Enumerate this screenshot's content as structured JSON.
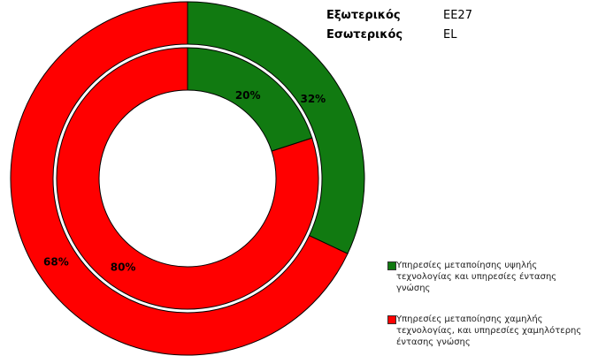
{
  "header": {
    "external_label": "Εξωτερικός",
    "external_value": "EE27",
    "internal_label": "Εσωτερικός",
    "internal_value": "EL"
  },
  "chart_data": {
    "type": "pie",
    "subtype": "nested-donut",
    "start": "top",
    "direction": "clockwise",
    "categories": [
      "Υπηρεσίες μεταποίησης υψηλής τεχνολογίας και υπηρεσίες έντασης γνώσης",
      "Υπηρεσίες μεταποίησης  χαμηλής τεχνολογίας, και υπηρεσίες χαμηλότερης έντασης γνώσης"
    ],
    "colors": [
      "#117a11",
      "#ff0000"
    ],
    "series": [
      {
        "name": "EE27",
        "ring": "outer",
        "values": [
          32,
          68
        ],
        "labels": [
          "32%",
          "68%"
        ]
      },
      {
        "name": "EL",
        "ring": "inner",
        "values": [
          20,
          80
        ],
        "labels": [
          "20%",
          "80%"
        ]
      }
    ],
    "legend_position": "bottom-right"
  }
}
